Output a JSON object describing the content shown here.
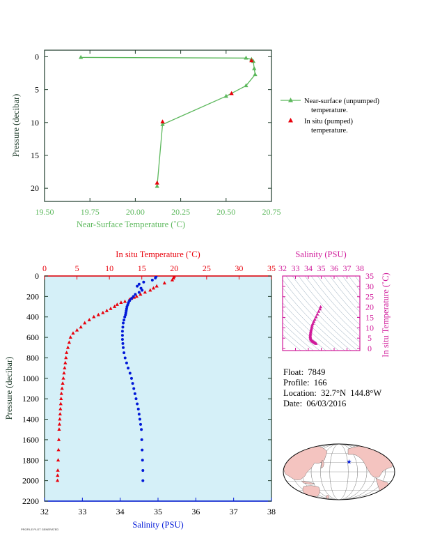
{
  "colors": {
    "near_surface": "#5cb85c",
    "in_situ_red": "#e8000b",
    "salinity_blue": "#0018d8",
    "salinity_magenta": "#d01a9a",
    "profile_bg": "#d5f0f8",
    "axis_dark": "#1c3a28"
  },
  "chart_data": [
    {
      "type": "line",
      "xlabel": "Near-Surface Temperature (˚C)",
      "ylabel": "Pressure (decibar)",
      "xlim": [
        19.5,
        20.75
      ],
      "ylim": [
        22,
        -1
      ],
      "x_ticks": [
        "19.50",
        "19.75",
        "20.00",
        "20.25",
        "20.50",
        "20.75"
      ],
      "x_tick_values": [
        19.5,
        19.75,
        20.0,
        20.25,
        20.5,
        20.75
      ],
      "y_ticks": [
        "0",
        "5",
        "10",
        "15",
        "20"
      ],
      "y_tick_values": [
        0,
        5,
        10,
        15,
        20
      ],
      "legend_position": "right",
      "series": [
        {
          "name": "Near-surface (unpumped) temperature.",
          "marker": "triangle-line",
          "x": [
            19.7,
            20.61,
            20.64,
            20.65,
            20.655,
            20.66,
            20.61,
            20.5,
            20.15,
            20.12
          ],
          "y": [
            0.1,
            0.2,
            0.4,
            0.7,
            1.8,
            2.7,
            4.4,
            6.0,
            10.3,
            19.7
          ]
        },
        {
          "name": "In situ (pumped) temperature.",
          "marker": "triangle",
          "x": [
            20.64,
            20.53,
            20.15,
            20.12
          ],
          "y": [
            0.6,
            5.6,
            9.9,
            19.2
          ]
        }
      ]
    },
    {
      "type": "scatter",
      "xlabel": "Salinity (PSU)",
      "x2label": "In situ Temperature (˚C)",
      "ylabel": "Pressure (decibar)",
      "xlim": [
        32,
        38
      ],
      "x2lim": [
        0,
        35
      ],
      "ylim": [
        2200,
        0
      ],
      "x_ticks": [
        "32",
        "33",
        "34",
        "35",
        "36",
        "37",
        "38"
      ],
      "x_tick_values": [
        32,
        33,
        34,
        35,
        36,
        37,
        38
      ],
      "x2_ticks": [
        "0",
        "5",
        "10",
        "15",
        "20",
        "25",
        "30",
        "35"
      ],
      "x2_tick_values": [
        0,
        5,
        10,
        15,
        20,
        25,
        30,
        35
      ],
      "y_ticks": [
        "0",
        "200",
        "400",
        "600",
        "800",
        "1000",
        "1200",
        "1400",
        "1600",
        "1800",
        "2000",
        "2200"
      ],
      "y_tick_values": [
        0,
        200,
        400,
        600,
        800,
        1000,
        1200,
        1400,
        1600,
        1800,
        2000,
        2200
      ],
      "temperature_profile": {
        "temperature": [
          20.0,
          19.9,
          19.7,
          18.5,
          17.3,
          16.8,
          16.3,
          15.5,
          14.8,
          14.2,
          13.8,
          13.4,
          13.1,
          12.4,
          11.8,
          11.2,
          10.8,
          10.2,
          9.6,
          9.0,
          8.3,
          7.6,
          6.9,
          6.2,
          5.6,
          5.0,
          4.4,
          4.0,
          3.8,
          3.6,
          3.4,
          3.3,
          3.2,
          3.1,
          3.0,
          2.9,
          2.8,
          2.7,
          2.6,
          2.55,
          2.5,
          2.45,
          2.4,
          2.35,
          2.3,
          2.25,
          2.2,
          2.15,
          2.1,
          2.05,
          2.02,
          2.0
        ],
        "pressure": [
          5,
          20,
          40,
          70,
          100,
          120,
          140,
          160,
          180,
          200,
          210,
          220,
          230,
          250,
          260,
          280,
          300,
          320,
          340,
          360,
          380,
          400,
          430,
          460,
          500,
          530,
          560,
          600,
          650,
          700,
          750,
          800,
          850,
          900,
          950,
          1000,
          1050,
          1100,
          1150,
          1200,
          1250,
          1300,
          1350,
          1400,
          1450,
          1500,
          1600,
          1700,
          1800,
          1900,
          1950,
          2000
        ]
      },
      "salinity_profile": {
        "salinity": [
          34.95,
          34.93,
          34.85,
          34.62,
          34.5,
          34.45,
          34.55,
          34.58,
          34.5,
          34.4,
          34.35,
          34.3,
          34.25,
          34.22,
          34.2,
          34.18,
          34.17,
          34.16,
          34.15,
          34.14,
          34.12,
          34.1,
          34.08,
          34.07,
          34.06,
          34.06,
          34.06,
          34.07,
          34.08,
          34.1,
          34.13,
          34.17,
          34.21,
          34.26,
          34.3,
          34.33,
          34.36,
          34.39,
          34.42,
          34.45,
          34.48,
          34.5,
          34.52,
          34.54,
          34.56,
          34.57,
          34.58,
          34.59,
          34.6,
          34.6
        ],
        "pressure": [
          5,
          20,
          40,
          60,
          80,
          100,
          120,
          140,
          160,
          180,
          200,
          220,
          240,
          260,
          280,
          300,
          320,
          340,
          360,
          380,
          400,
          430,
          460,
          500,
          540,
          580,
          620,
          660,
          700,
          750,
          800,
          850,
          900,
          950,
          1000,
          1050,
          1100,
          1150,
          1200,
          1250,
          1300,
          1350,
          1400,
          1450,
          1500,
          1600,
          1700,
          1800,
          1900,
          2000
        ]
      }
    },
    {
      "type": "scatter",
      "xlabel": "Salinity (PSU)",
      "ylabel": "In situ Temperature (˚C)",
      "xlim": [
        32,
        38
      ],
      "ylim": [
        -1,
        35
      ],
      "x_ticks": [
        "32",
        "33",
        "34",
        "35",
        "36",
        "37",
        "38"
      ],
      "x_tick_values": [
        32,
        33,
        34,
        35,
        36,
        37,
        38
      ],
      "y_ticks": [
        "0",
        "5",
        "10",
        "15",
        "20",
        "25",
        "30",
        "35"
      ],
      "y_tick_values": [
        0,
        5,
        10,
        15,
        20,
        25,
        30,
        35
      ],
      "points": {
        "salinity": [
          34.95,
          34.9,
          34.8,
          34.7,
          34.6,
          34.5,
          34.42,
          34.35,
          34.3,
          34.27,
          34.25,
          34.22,
          34.2,
          34.18,
          34.17,
          34.16,
          34.15,
          34.15,
          34.16,
          34.18,
          34.2,
          34.25,
          34.3,
          34.35,
          34.4,
          34.45,
          34.5,
          34.55,
          34.6
        ],
        "temperature": [
          20.0,
          19.0,
          17.8,
          16.5,
          15.2,
          14.0,
          13.0,
          12.0,
          11.2,
          10.5,
          9.8,
          9.1,
          8.5,
          7.9,
          7.3,
          6.7,
          6.1,
          5.6,
          5.1,
          4.6,
          4.2,
          3.8,
          3.5,
          3.3,
          3.1,
          2.9,
          2.7,
          2.5,
          2.3
        ]
      }
    }
  ],
  "profile_info": {
    "float": "Float:  7849",
    "profile": "Profile:  166",
    "location": "Location:  32.7°N  144.8°W",
    "date": "Date:  06/03/2016"
  },
  "map": {
    "float_lat": 32.7,
    "float_lon": -144.8,
    "land_color": "#f4c4c0",
    "ocean_color": "#ffffff"
  },
  "fineprint": "PROFILE PLOT GENERATED"
}
